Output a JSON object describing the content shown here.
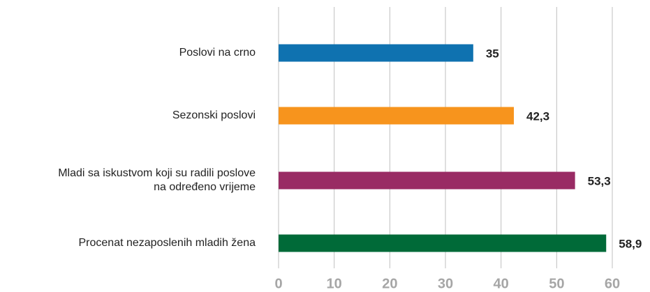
{
  "chart_data": {
    "type": "hbar",
    "categories": [
      "Poslovi na crno",
      "Sezonski poslovi",
      "Mladi sa iskustvom koji su radili poslove\nna određeno vrijeme",
      "Procenat nezaposlenih mladih žena"
    ],
    "values": [
      35,
      42.3,
      53.3,
      58.9
    ],
    "value_labels": [
      "35",
      "42,3",
      "53,3",
      "58,9"
    ],
    "colors": [
      "#0f72b0",
      "#f7941d",
      "#992b64",
      "#006a38"
    ],
    "xlim": [
      0,
      60
    ],
    "xticks": [
      0,
      10,
      20,
      30,
      40,
      50,
      60
    ],
    "grid": true
  }
}
